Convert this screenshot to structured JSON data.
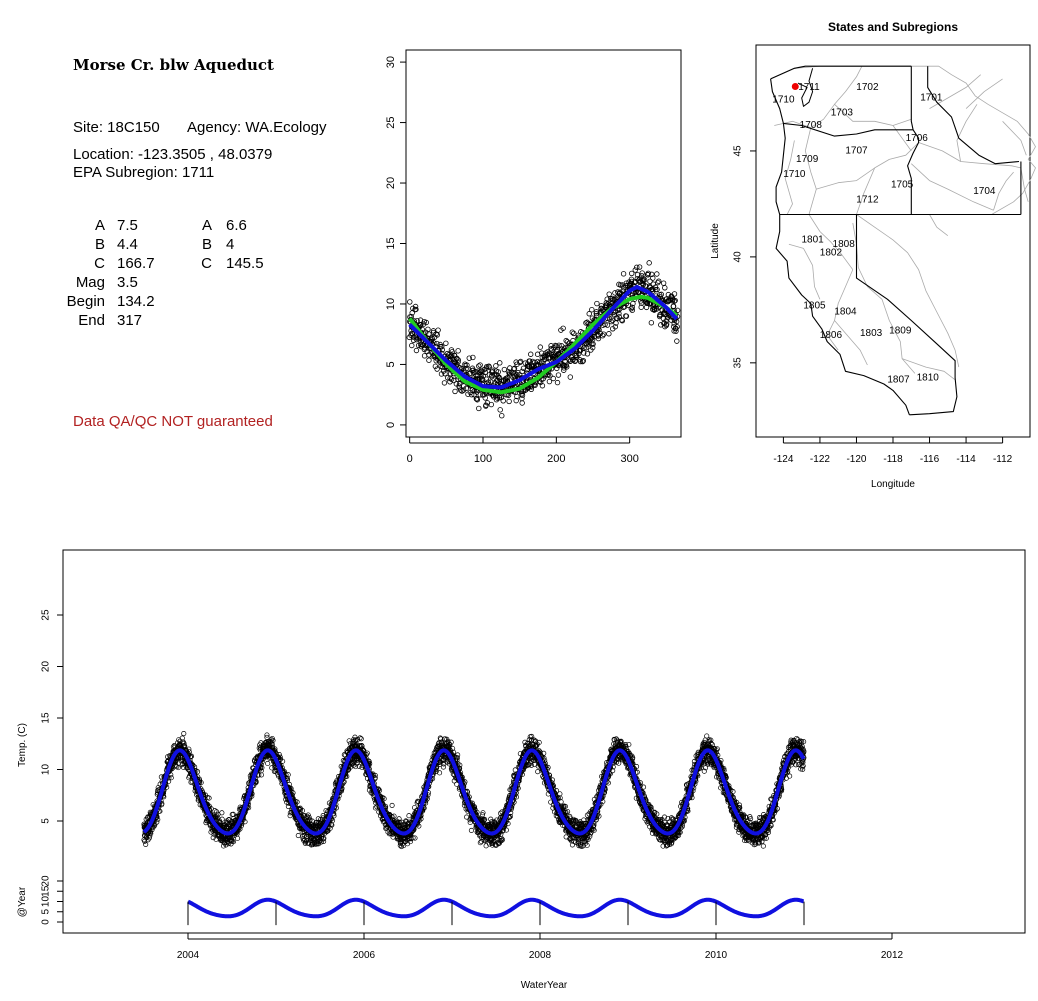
{
  "info": {
    "title": "Morse Cr. blw Aqueduct",
    "site": "Site: 18C150",
    "agency": "Agency: WA.Ecology",
    "location": "Location: -123.3505 , 48.0379",
    "subregion": "EPA Subregion: 1711",
    "params_left": [
      {
        "label": "A",
        "value": "7.5"
      },
      {
        "label": "B",
        "value": "4.4"
      },
      {
        "label": "C",
        "value": "166.7"
      },
      {
        "label": "Mag",
        "value": "3.5"
      },
      {
        "label": "Begin",
        "value": "134.2"
      },
      {
        "label": "End",
        "value": "317"
      }
    ],
    "params_right": [
      {
        "label": "A",
        "value": "6.6"
      },
      {
        "label": "B",
        "value": "4"
      },
      {
        "label": "C",
        "value": "145.5"
      }
    ],
    "warning": "Data QA/QC NOT guaranteed"
  },
  "colors": {
    "blue": "#1010e0",
    "green": "#22cc22",
    "red": "#ee0000",
    "warning": "#b22222"
  },
  "chart_data": [
    {
      "type": "scatter",
      "title": "",
      "xlabel": "",
      "ylabel": "",
      "xlim": [
        -5,
        370
      ],
      "ylim": [
        -1,
        31
      ],
      "xticks": [
        0,
        100,
        200,
        300
      ],
      "yticks": [
        0,
        5,
        10,
        15,
        20,
        25,
        30
      ],
      "series": [
        {
          "kind": "points",
          "values_description_x": [
            0,
            365
          ],
          "y_range": [
            0,
            15.4
          ]
        },
        {
          "kind": "blue-fit",
          "x": [
            0,
            25,
            50,
            75,
            100,
            125,
            150,
            175,
            200,
            225,
            250,
            275,
            300,
            310,
            325,
            350,
            365
          ],
          "y": [
            8.3,
            6.8,
            5.3,
            4.0,
            3.2,
            3.1,
            3.7,
            4.6,
            5.2,
            6.3,
            7.8,
            9.5,
            11.1,
            11.4,
            11.0,
            9.7,
            8.7
          ]
        },
        {
          "kind": "green-fit",
          "x": [
            0,
            25,
            50,
            75,
            100,
            125,
            150,
            175,
            200,
            225,
            250,
            275,
            300,
            315,
            325,
            350,
            365
          ],
          "y": [
            8.8,
            6.8,
            5.0,
            3.6,
            2.9,
            2.7,
            3.0,
            3.9,
            5.2,
            6.7,
            8.3,
            9.6,
            10.4,
            10.6,
            10.5,
            9.7,
            9.0
          ]
        }
      ]
    },
    {
      "type": "map",
      "title": "States and Subregions",
      "xlabel": "Longitude",
      "ylabel": "Latitude",
      "xlim": [
        -125.5,
        -110.5
      ],
      "ylim": [
        31.5,
        50
      ],
      "xticks": [
        -124,
        -122,
        -120,
        -118,
        -116,
        -114,
        -112
      ],
      "yticks": [
        35,
        40,
        45
      ],
      "site": {
        "lon": -123.35,
        "lat": 48.04
      },
      "region_labels": [
        {
          "label": "1711",
          "lon": -122.6,
          "lat": 48.0
        },
        {
          "label": "1702",
          "lon": -119.4,
          "lat": 48.0
        },
        {
          "label": "1701",
          "lon": -115.9,
          "lat": 47.5
        },
        {
          "label": "1710",
          "lon": -124.0,
          "lat": 47.4
        },
        {
          "label": "1703",
          "lon": -120.8,
          "lat": 46.8
        },
        {
          "label": "1708",
          "lon": -122.5,
          "lat": 46.2
        },
        {
          "label": "1706",
          "lon": -116.7,
          "lat": 45.6
        },
        {
          "label": "1707",
          "lon": -120.0,
          "lat": 45.0
        },
        {
          "label": "1709",
          "lon": -122.7,
          "lat": 44.6
        },
        {
          "label": "1710",
          "lon": -123.4,
          "lat": 43.9
        },
        {
          "label": "1705",
          "lon": -117.5,
          "lat": 43.4
        },
        {
          "label": "1704",
          "lon": -113.0,
          "lat": 43.1
        },
        {
          "label": "1712",
          "lon": -119.4,
          "lat": 42.7
        },
        {
          "label": "1801",
          "lon": -122.4,
          "lat": 40.8
        },
        {
          "label": "1808",
          "lon": -120.7,
          "lat": 40.6
        },
        {
          "label": "1802",
          "lon": -121.4,
          "lat": 40.2
        },
        {
          "label": "1805",
          "lon": -122.3,
          "lat": 37.7
        },
        {
          "label": "1804",
          "lon": -120.6,
          "lat": 37.4
        },
        {
          "label": "1806",
          "lon": -121.4,
          "lat": 36.3
        },
        {
          "label": "1803",
          "lon": -119.2,
          "lat": 36.4
        },
        {
          "label": "1809",
          "lon": -117.6,
          "lat": 36.5
        },
        {
          "label": "1807",
          "lon": -117.7,
          "lat": 34.2
        },
        {
          "label": "1810",
          "lon": -116.1,
          "lat": 34.3
        }
      ]
    },
    {
      "type": "scatter",
      "title": "",
      "xlabel": "WaterYear",
      "ylabel": "Temp. (C)",
      "ylabel2": "@Year",
      "xlim": [
        2002.6,
        2013.4
      ],
      "ylim": [
        1,
        30.5
      ],
      "xticks": [
        2004,
        2006,
        2008,
        2010,
        2012
      ],
      "yticks": [
        5,
        10,
        15,
        20,
        25
      ],
      "yticks2": [
        0,
        5,
        10,
        15,
        20
      ],
      "series": [
        {
          "kind": "points",
          "x_range": [
            2003.5,
            2011.0
          ],
          "y_range": [
            2.5,
            15.5
          ]
        },
        {
          "kind": "blue-fit",
          "amplitude": 4.0,
          "mean": 7.4,
          "peak_phase": 0.92
        }
      ],
      "year_markers": [
        2004,
        2005,
        2006,
        2007,
        2008,
        2009,
        2010,
        2011
      ]
    }
  ]
}
